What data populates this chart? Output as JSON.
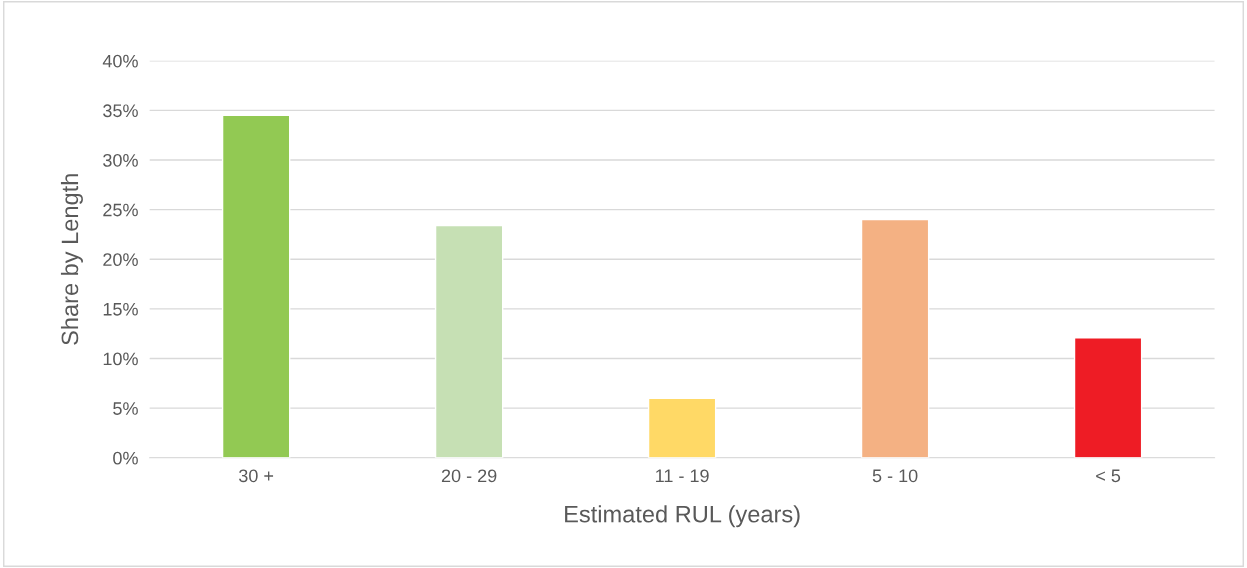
{
  "chart_data": {
    "type": "bar",
    "xlabel": "Estimated RUL (years)",
    "ylabel": "Share by Length",
    "categories": [
      "30 +",
      "20 - 29",
      "11 - 19",
      "5 - 10",
      "< 5"
    ],
    "values": [
      34.5,
      23.4,
      6.0,
      24.0,
      12.1
    ],
    "colors": [
      "#92c953",
      "#c6e0b4",
      "#ffd966",
      "#f4b183",
      "#ee1c25"
    ],
    "ylim": [
      0,
      40
    ],
    "yticks": [
      {
        "value": 0,
        "label": "0%"
      },
      {
        "value": 5,
        "label": "5%"
      },
      {
        "value": 10,
        "label": "10%"
      },
      {
        "value": 15,
        "label": "15%"
      },
      {
        "value": 20,
        "label": "20%"
      },
      {
        "value": 25,
        "label": "25%"
      },
      {
        "value": 30,
        "label": "30%"
      },
      {
        "value": 35,
        "label": "35%"
      },
      {
        "value": 40,
        "label": "40%"
      }
    ],
    "grid": "y"
  }
}
